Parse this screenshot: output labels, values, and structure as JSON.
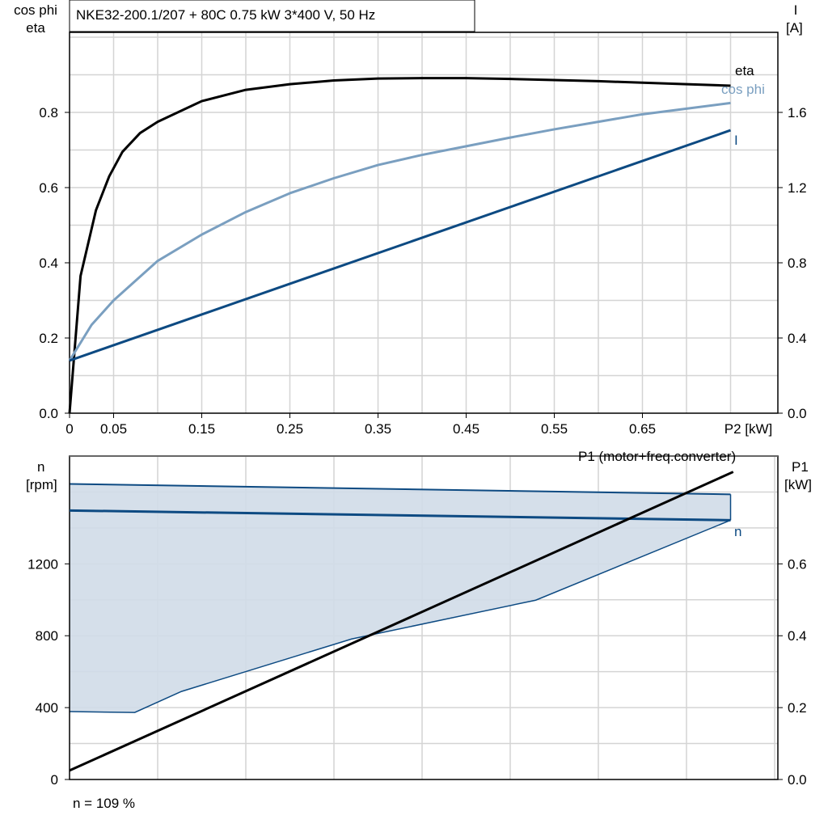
{
  "colors": {
    "eta": "#000000",
    "cos_phi": "#7a9fc0",
    "current": "#0d4a82",
    "speed": "#0d4a82",
    "speed_band": "#d0dce8",
    "p1": "#000000",
    "grid": "#d4d4d4"
  },
  "chart_data": [
    {
      "type": "line",
      "title": "NKE32-200.1/207 + 80C   0.75 kW   3*400 V, 50 Hz",
      "xlabel": "P2 [kW]",
      "ylabel_left": [
        "cos phi",
        "eta"
      ],
      "ylabel_right": [
        "I",
        "[A]"
      ],
      "xlim": [
        0,
        0.8
      ],
      "ylim_left": [
        0,
        1.0
      ],
      "ylim_right": [
        0,
        2.0
      ],
      "grid": true,
      "x_tick_labels": [
        "0",
        "0.05",
        "0.15",
        "0.25",
        "0.35",
        "0.45",
        "0.55",
        "0.65"
      ],
      "x_ticks": [
        0,
        0.05,
        0.15,
        0.25,
        0.35,
        0.45,
        0.55,
        0.65
      ],
      "y_left_ticks": [
        "0.0",
        "0.2",
        "0.4",
        "0.6",
        "0.8"
      ],
      "y_right_ticks": [
        "0.0",
        "0.4",
        "0.8",
        "1.2",
        "1.6"
      ],
      "series": [
        {
          "name": "eta",
          "axis": "left",
          "x": [
            0,
            0.0125,
            0.03,
            0.045,
            0.06,
            0.08,
            0.1,
            0.15,
            0.2,
            0.25,
            0.3,
            0.35,
            0.4,
            0.45,
            0.5,
            0.55,
            0.6,
            0.65,
            0.7,
            0.75
          ],
          "y": [
            0,
            0.365,
            0.54,
            0.63,
            0.695,
            0.745,
            0.775,
            0.83,
            0.86,
            0.875,
            0.885,
            0.89,
            0.891,
            0.891,
            0.889,
            0.886,
            0.883,
            0.879,
            0.875,
            0.871
          ]
        },
        {
          "name": "cos phi",
          "axis": "left",
          "x": [
            0,
            0.025,
            0.05,
            0.1,
            0.15,
            0.2,
            0.25,
            0.3,
            0.35,
            0.4,
            0.45,
            0.5,
            0.55,
            0.6,
            0.65,
            0.7,
            0.75
          ],
          "y": [
            0.14,
            0.235,
            0.3,
            0.405,
            0.475,
            0.535,
            0.585,
            0.625,
            0.66,
            0.687,
            0.71,
            0.733,
            0.755,
            0.775,
            0.795,
            0.81,
            0.825
          ]
        },
        {
          "name": "I",
          "axis": "right",
          "x": [
            0,
            0.75
          ],
          "y": [
            0.28,
            1.505
          ]
        }
      ]
    },
    {
      "type": "line",
      "xlim": [
        0,
        0.8
      ],
      "ylabel_left": [
        "n",
        "[rpm]"
      ],
      "ylabel_right": [
        "P1",
        "[kW]"
      ],
      "ylim_left": [
        0,
        1800
      ],
      "ylim_right": [
        0,
        0.9
      ],
      "grid": true,
      "y_left_ticks": [
        "0",
        "400",
        "800",
        "1200"
      ],
      "y_right_ticks": [
        "0.0",
        "0.2",
        "0.4",
        "0.6"
      ],
      "annotation": "n = 109 %",
      "band": {
        "upper_x": [
          0,
          0.75
        ],
        "upper_y": [
          1645,
          1587
        ],
        "lower_x": [
          0,
          0.074,
          0.127,
          0.32,
          0.529,
          0.75
        ],
        "lower_y": [
          378,
          373,
          490,
          782,
          998,
          1443
        ]
      },
      "series": [
        {
          "name": "n",
          "axis": "left",
          "x": [
            0,
            0.75
          ],
          "y": [
            1497,
            1443
          ]
        },
        {
          "name": "P1 (motor+freq.converter)",
          "axis": "right",
          "x": [
            0,
            0.753
          ],
          "y": [
            0.025,
            0.856
          ]
        }
      ]
    }
  ]
}
